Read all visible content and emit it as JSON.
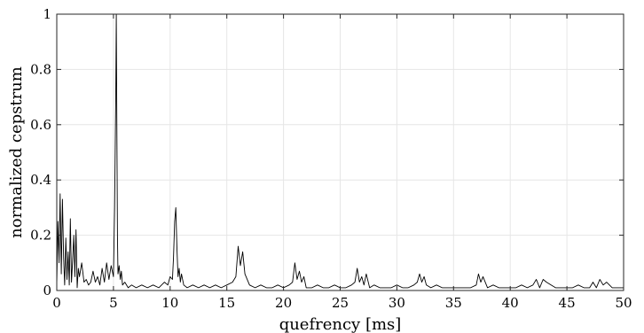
{
  "chart_data": {
    "type": "line",
    "title": "",
    "xlabel": "quefrency [ms]",
    "ylabel": "normalized cepstrum",
    "xlim": [
      0,
      50
    ],
    "ylim": [
      0,
      1
    ],
    "xticks": [
      0,
      5,
      10,
      15,
      20,
      25,
      30,
      35,
      40,
      45,
      50
    ],
    "yticks": [
      0,
      0.2,
      0.4,
      0.6,
      0.8,
      1
    ],
    "xtick_labels": [
      "0",
      "5",
      "10",
      "15",
      "20",
      "25",
      "30",
      "35",
      "40",
      "45",
      "50"
    ],
    "ytick_labels": [
      "0",
      "0.2",
      "0.4",
      "0.6",
      "0.8",
      "1"
    ],
    "grid": true,
    "line_color": "#000000",
    "grid_color": "#e6e6e6",
    "series": [
      {
        "x": [
          0.0,
          0.1,
          0.2,
          0.3,
          0.4,
          0.5,
          0.6,
          0.7,
          0.8,
          0.9,
          1.0,
          1.1,
          1.2,
          1.3,
          1.4,
          1.5,
          1.6,
          1.7,
          1.8,
          1.9,
          2.0,
          2.2,
          2.4,
          2.6,
          2.8,
          3.0,
          3.2,
          3.4,
          3.6,
          3.8,
          4.0,
          4.2,
          4.4,
          4.6,
          4.8,
          5.0,
          5.1,
          5.2,
          5.25,
          5.3,
          5.35,
          5.4,
          5.5,
          5.6,
          5.7,
          5.8,
          6.0,
          6.3,
          6.6,
          7.0,
          7.5,
          8.0,
          8.5,
          9.0,
          9.5,
          9.8,
          10.0,
          10.2,
          10.3,
          10.4,
          10.5,
          10.6,
          10.7,
          10.8,
          10.9,
          11.0,
          11.2,
          11.5,
          12.0,
          12.5,
          13.0,
          13.5,
          14.0,
          14.5,
          15.0,
          15.5,
          15.8,
          16.0,
          16.2,
          16.4,
          16.6,
          17.0,
          17.5,
          18.0,
          18.5,
          19.0,
          19.5,
          20.0,
          20.5,
          20.8,
          21.0,
          21.2,
          21.4,
          21.6,
          21.8,
          22.0,
          22.5,
          23.0,
          23.5,
          24.0,
          24.5,
          25.0,
          25.5,
          26.0,
          26.3,
          26.5,
          26.7,
          26.9,
          27.1,
          27.3,
          27.6,
          28.0,
          28.5,
          29.0,
          29.5,
          30.0,
          30.5,
          31.0,
          31.5,
          31.8,
          32.0,
          32.2,
          32.4,
          32.6,
          33.0,
          33.5,
          34.0,
          34.5,
          35.0,
          35.5,
          36.0,
          36.5,
          37.0,
          37.2,
          37.4,
          37.6,
          38.0,
          38.5,
          39.0,
          39.5,
          40.0,
          40.5,
          41.0,
          41.5,
          42.0,
          42.3,
          42.6,
          42.9,
          43.2,
          43.6,
          44.0,
          44.5,
          45.0,
          45.5,
          46.0,
          46.5,
          47.0,
          47.3,
          47.6,
          47.9,
          48.2,
          48.5,
          49.0,
          49.5,
          50.0
        ],
        "y": [
          0.02,
          0.25,
          0.1,
          0.35,
          0.06,
          0.33,
          0.12,
          0.02,
          0.19,
          0.04,
          0.14,
          0.02,
          0.26,
          0.03,
          0.11,
          0.2,
          0.05,
          0.22,
          0.01,
          0.08,
          0.05,
          0.1,
          0.03,
          0.04,
          0.02,
          0.03,
          0.07,
          0.03,
          0.05,
          0.02,
          0.08,
          0.03,
          0.1,
          0.04,
          0.09,
          0.05,
          0.3,
          0.7,
          1.0,
          0.62,
          0.2,
          0.06,
          0.09,
          0.04,
          0.07,
          0.02,
          0.03,
          0.01,
          0.02,
          0.01,
          0.02,
          0.01,
          0.02,
          0.01,
          0.03,
          0.02,
          0.05,
          0.04,
          0.12,
          0.25,
          0.3,
          0.15,
          0.05,
          0.08,
          0.03,
          0.06,
          0.02,
          0.01,
          0.02,
          0.01,
          0.02,
          0.01,
          0.02,
          0.01,
          0.02,
          0.03,
          0.05,
          0.16,
          0.09,
          0.14,
          0.06,
          0.02,
          0.01,
          0.02,
          0.01,
          0.01,
          0.02,
          0.01,
          0.02,
          0.03,
          0.1,
          0.04,
          0.07,
          0.03,
          0.05,
          0.01,
          0.01,
          0.02,
          0.01,
          0.01,
          0.02,
          0.01,
          0.01,
          0.02,
          0.03,
          0.08,
          0.03,
          0.05,
          0.02,
          0.06,
          0.01,
          0.02,
          0.01,
          0.01,
          0.01,
          0.02,
          0.01,
          0.01,
          0.02,
          0.03,
          0.06,
          0.03,
          0.05,
          0.02,
          0.01,
          0.02,
          0.01,
          0.01,
          0.01,
          0.01,
          0.01,
          0.01,
          0.02,
          0.06,
          0.03,
          0.05,
          0.01,
          0.02,
          0.01,
          0.01,
          0.01,
          0.01,
          0.02,
          0.01,
          0.02,
          0.04,
          0.01,
          0.04,
          0.03,
          0.02,
          0.01,
          0.01,
          0.01,
          0.01,
          0.02,
          0.01,
          0.01,
          0.03,
          0.01,
          0.04,
          0.02,
          0.03,
          0.01,
          0.01,
          0.01
        ]
      }
    ]
  }
}
